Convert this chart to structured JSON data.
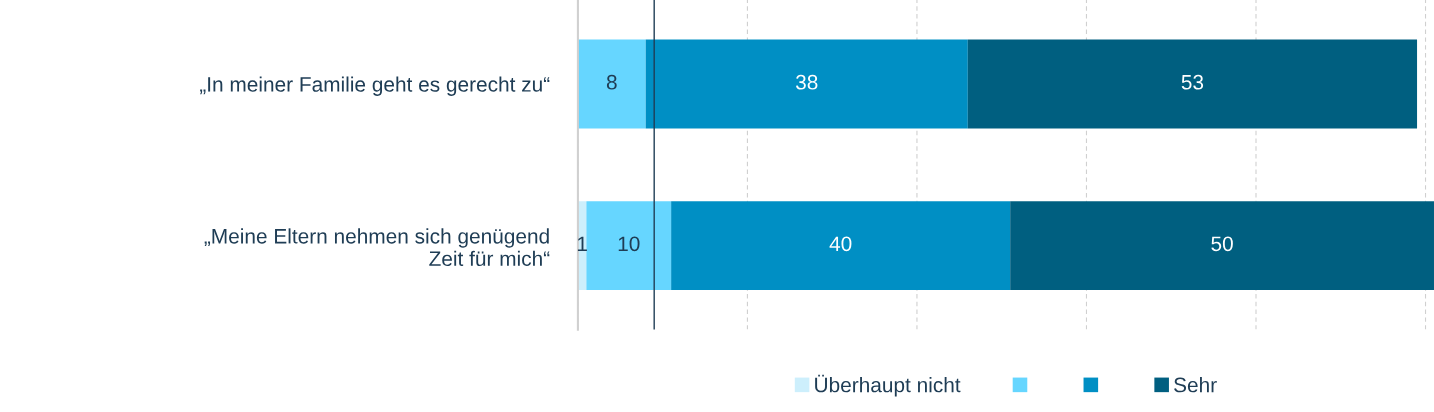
{
  "chart_data": {
    "type": "bar",
    "orientation": "horizontal",
    "stacked": true,
    "categories": [
      "„In meiner Familie geht es gerecht zu“",
      "„Meine Eltern nehmen sich genügend Zeit für mich“"
    ],
    "series": [
      {
        "name": "Überhaupt nicht",
        "color": "#cdeffc",
        "values": [
          0,
          1
        ],
        "value_labels": [
          null,
          "1"
        ]
      },
      {
        "color": "#66d6ff",
        "values": [
          8,
          10
        ],
        "value_labels": [
          "8",
          "10"
        ]
      },
      {
        "color": "#008fc4",
        "values": [
          38,
          40
        ],
        "value_labels": [
          "38",
          "40"
        ]
      },
      {
        "name": "Sehr",
        "color": "#005f80",
        "values": [
          53,
          50
        ],
        "value_labels": [
          "53",
          "50"
        ]
      }
    ],
    "xlim": [
      0,
      101
    ],
    "xticks": [
      {
        "value": 0,
        "label": null
      },
      {
        "value": 20,
        "label": null
      },
      {
        "value": 40,
        "label": null
      },
      {
        "value": 60,
        "label": null
      },
      {
        "value": 80,
        "label": null
      },
      {
        "value": 100,
        "label": null
      }
    ],
    "tick_labels": "y",
    "grid": "x",
    "legend": "bottom",
    "ref_lines": [
      {
        "axis": "x",
        "value": 9,
        "color": "#1f3d55"
      }
    ]
  }
}
